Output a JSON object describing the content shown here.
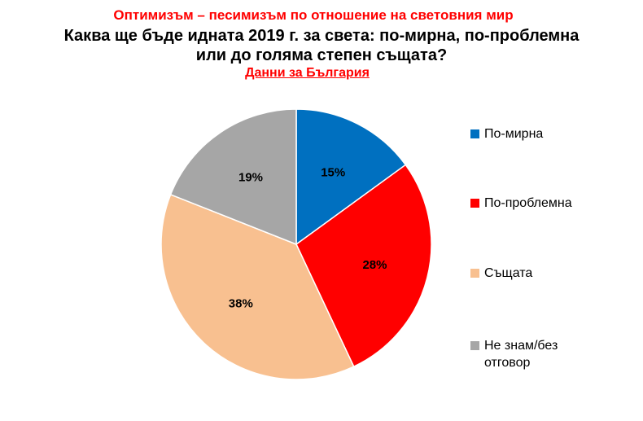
{
  "header": {
    "subtitle_top": "Оптимизъм – песимизъм по отношение на световния мир",
    "title_line1": "Каква ще бъде идната 2019 г. за света: по-мирна, по-проблемна",
    "title_line2": "или до голяма степен същата?",
    "subtitle_bottom": "Данни за България"
  },
  "chart_data": {
    "type": "pie",
    "title": "Каква ще бъде идната 2019 г. за света: по-мирна, по-проблемна или до голяма степен същата?",
    "subtitle": "Данни за България",
    "legend_position": "right",
    "slices": [
      {
        "name": "По-мирна",
        "value": 15,
        "label": "15%",
        "color": "#0070c0"
      },
      {
        "name": "По-проблемна",
        "value": 28,
        "label": "28%",
        "color": "#ff0000"
      },
      {
        "name": "Същата",
        "value": 38,
        "label": "38%",
        "color": "#f8c090"
      },
      {
        "name": "Не знам/без отговор",
        "value": 19,
        "label": "19%",
        "color": "#a6a6a6"
      }
    ]
  }
}
